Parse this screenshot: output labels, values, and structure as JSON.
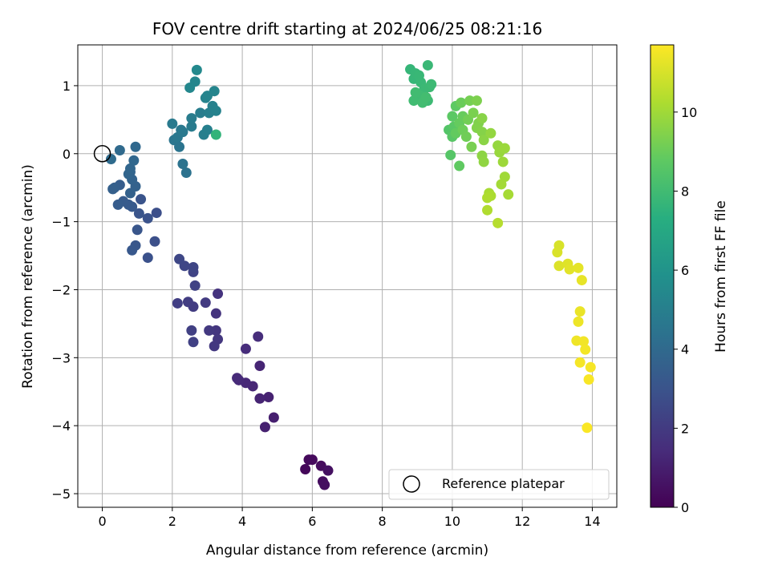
{
  "chart_data": {
    "type": "scatter",
    "title": "FOV centre drift starting at 2024/06/25 08:21:16",
    "xlabel": "Angular distance from reference (arcmin)",
    "ylabel": "Rotation from reference (arcmin)",
    "xlim": [
      -0.7,
      14.7
    ],
    "ylim": [
      -5.2,
      1.6
    ],
    "xticks": [
      0,
      2,
      4,
      6,
      8,
      10,
      12,
      14
    ],
    "yticks": [
      -5,
      -4,
      -3,
      -2,
      -1,
      0,
      1
    ],
    "xtick_labels": [
      "0",
      "2",
      "4",
      "6",
      "8",
      "10",
      "12",
      "14"
    ],
    "ytick_labels": [
      "−5",
      "−4",
      "−3",
      "−2",
      "−1",
      "0",
      "1"
    ],
    "grid": true,
    "colormap": "viridis",
    "colorbar": {
      "label": "Hours from first FF file",
      "min": 0,
      "max": 11.7,
      "ticks": [
        0,
        2,
        4,
        6,
        8,
        10
      ],
      "tick_labels": [
        "0",
        "2",
        "4",
        "6",
        "8",
        "10"
      ]
    },
    "legend": {
      "placement": "lower-right",
      "entries": [
        {
          "label": "Reference platepar",
          "marker": "open-circle"
        }
      ]
    },
    "reference_point": {
      "x": 0,
      "y": 0
    },
    "points": [
      {
        "x": 5.8,
        "y": -4.64,
        "h": 0.2
      },
      {
        "x": 5.9,
        "y": -4.5,
        "h": 0.25
      },
      {
        "x": 6.0,
        "y": -4.5,
        "h": 0.3
      },
      {
        "x": 6.25,
        "y": -4.59,
        "h": 0.35
      },
      {
        "x": 6.3,
        "y": -4.82,
        "h": 0.4
      },
      {
        "x": 6.35,
        "y": -4.87,
        "h": 0.45
      },
      {
        "x": 6.45,
        "y": -4.66,
        "h": 0.5
      },
      {
        "x": 4.9,
        "y": -3.88,
        "h": 1.0
      },
      {
        "x": 4.65,
        "y": -4.02,
        "h": 1.05
      },
      {
        "x": 4.75,
        "y": -3.58,
        "h": 1.1
      },
      {
        "x": 4.5,
        "y": -3.6,
        "h": 1.15
      },
      {
        "x": 4.5,
        "y": -3.12,
        "h": 1.2
      },
      {
        "x": 4.3,
        "y": -3.42,
        "h": 1.25
      },
      {
        "x": 4.1,
        "y": -3.37,
        "h": 1.3
      },
      {
        "x": 3.9,
        "y": -3.33,
        "h": 1.35
      },
      {
        "x": 3.85,
        "y": -3.3,
        "h": 1.4
      },
      {
        "x": 4.1,
        "y": -2.87,
        "h": 1.45
      },
      {
        "x": 4.45,
        "y": -2.69,
        "h": 1.5
      },
      {
        "x": 3.3,
        "y": -2.06,
        "h": 1.7
      },
      {
        "x": 3.25,
        "y": -2.35,
        "h": 1.75
      },
      {
        "x": 3.25,
        "y": -2.6,
        "h": 1.8
      },
      {
        "x": 3.3,
        "y": -2.73,
        "h": 1.85
      },
      {
        "x": 3.2,
        "y": -2.83,
        "h": 1.9
      },
      {
        "x": 3.05,
        "y": -2.6,
        "h": 1.95
      },
      {
        "x": 2.95,
        "y": -2.19,
        "h": 2.0
      },
      {
        "x": 2.6,
        "y": -2.25,
        "h": 2.05
      },
      {
        "x": 2.45,
        "y": -2.18,
        "h": 2.1
      },
      {
        "x": 2.15,
        "y": -2.2,
        "h": 2.15
      },
      {
        "x": 2.55,
        "y": -2.6,
        "h": 2.2
      },
      {
        "x": 2.6,
        "y": -2.77,
        "h": 2.25
      },
      {
        "x": 2.65,
        "y": -1.94,
        "h": 2.3
      },
      {
        "x": 2.6,
        "y": -1.74,
        "h": 2.35
      },
      {
        "x": 2.6,
        "y": -1.67,
        "h": 2.4
      },
      {
        "x": 2.35,
        "y": -1.65,
        "h": 2.45
      },
      {
        "x": 2.2,
        "y": -1.55,
        "h": 2.5
      },
      {
        "x": 1.55,
        "y": -0.87,
        "h": 2.8
      },
      {
        "x": 1.5,
        "y": -1.29,
        "h": 2.85
      },
      {
        "x": 1.3,
        "y": -1.53,
        "h": 2.9
      },
      {
        "x": 1.3,
        "y": -0.95,
        "h": 2.95
      },
      {
        "x": 1.1,
        "y": -0.67,
        "h": 3.0
      },
      {
        "x": 1.05,
        "y": -0.88,
        "h": 3.05
      },
      {
        "x": 1.0,
        "y": -1.12,
        "h": 3.1
      },
      {
        "x": 0.95,
        "y": -1.35,
        "h": 3.15
      },
      {
        "x": 0.85,
        "y": -1.42,
        "h": 3.2
      },
      {
        "x": 0.85,
        "y": -0.78,
        "h": 3.25
      },
      {
        "x": 0.75,
        "y": -0.75,
        "h": 3.3
      },
      {
        "x": 0.6,
        "y": -0.7,
        "h": 3.35
      },
      {
        "x": 0.45,
        "y": -0.75,
        "h": 3.4
      },
      {
        "x": 0.5,
        "y": -0.46,
        "h": 3.45
      },
      {
        "x": 0.35,
        "y": -0.5,
        "h": 3.5
      },
      {
        "x": 0.3,
        "y": -0.52,
        "h": 3.55
      },
      {
        "x": 0.8,
        "y": -0.58,
        "h": 3.6
      },
      {
        "x": 0.95,
        "y": -0.48,
        "h": 3.65
      },
      {
        "x": 0.85,
        "y": -0.38,
        "h": 3.7
      },
      {
        "x": 0.8,
        "y": -0.27,
        "h": 3.75
      },
      {
        "x": 0.75,
        "y": -0.3,
        "h": 3.8
      },
      {
        "x": 0.8,
        "y": -0.22,
        "h": 3.85
      },
      {
        "x": 0.9,
        "y": -0.1,
        "h": 3.9
      },
      {
        "x": 0.95,
        "y": 0.1,
        "h": 3.95
      },
      {
        "x": 0.5,
        "y": 0.05,
        "h": 4.0
      },
      {
        "x": 0.25,
        "y": -0.08,
        "h": 4.05
      },
      {
        "x": 2.4,
        "y": -0.28,
        "h": 4.4
      },
      {
        "x": 2.3,
        "y": -0.15,
        "h": 4.45
      },
      {
        "x": 2.2,
        "y": 0.1,
        "h": 4.5
      },
      {
        "x": 2.05,
        "y": 0.2,
        "h": 4.55
      },
      {
        "x": 2.15,
        "y": 0.24,
        "h": 4.6
      },
      {
        "x": 2.25,
        "y": 0.35,
        "h": 4.65
      },
      {
        "x": 2.3,
        "y": 0.32,
        "h": 4.7
      },
      {
        "x": 2.0,
        "y": 0.44,
        "h": 4.75
      },
      {
        "x": 2.55,
        "y": 0.4,
        "h": 4.8
      },
      {
        "x": 2.55,
        "y": 0.52,
        "h": 4.85
      },
      {
        "x": 2.8,
        "y": 0.6,
        "h": 4.9
      },
      {
        "x": 2.9,
        "y": 0.28,
        "h": 4.95
      },
      {
        "x": 3.0,
        "y": 0.35,
        "h": 5.0
      },
      {
        "x": 3.05,
        "y": 0.6,
        "h": 5.05
      },
      {
        "x": 3.15,
        "y": 0.7,
        "h": 5.1
      },
      {
        "x": 3.25,
        "y": 0.63,
        "h": 5.15
      },
      {
        "x": 2.95,
        "y": 0.82,
        "h": 5.2
      },
      {
        "x": 3.0,
        "y": 0.85,
        "h": 5.25
      },
      {
        "x": 3.2,
        "y": 0.92,
        "h": 5.3
      },
      {
        "x": 2.65,
        "y": 1.06,
        "h": 5.35
      },
      {
        "x": 2.5,
        "y": 0.97,
        "h": 5.4
      },
      {
        "x": 2.7,
        "y": 1.23,
        "h": 5.45
      },
      {
        "x": 3.25,
        "y": 0.28,
        "h": 7.6
      },
      {
        "x": 8.8,
        "y": 1.24,
        "h": 7.7
      },
      {
        "x": 8.9,
        "y": 1.1,
        "h": 7.72
      },
      {
        "x": 8.95,
        "y": 1.18,
        "h": 7.75
      },
      {
        "x": 9.05,
        "y": 1.15,
        "h": 7.78
      },
      {
        "x": 9.1,
        "y": 1.05,
        "h": 7.8
      },
      {
        "x": 9.3,
        "y": 1.3,
        "h": 7.82
      },
      {
        "x": 9.2,
        "y": 0.95,
        "h": 7.85
      },
      {
        "x": 9.35,
        "y": 0.98,
        "h": 7.88
      },
      {
        "x": 9.4,
        "y": 1.02,
        "h": 7.9
      },
      {
        "x": 9.3,
        "y": 0.78,
        "h": 7.92
      },
      {
        "x": 9.1,
        "y": 0.85,
        "h": 7.95
      },
      {
        "x": 9.0,
        "y": 0.82,
        "h": 7.98
      },
      {
        "x": 8.9,
        "y": 0.78,
        "h": 8.0
      },
      {
        "x": 8.95,
        "y": 0.9,
        "h": 8.02
      },
      {
        "x": 9.15,
        "y": 0.75,
        "h": 8.05
      },
      {
        "x": 9.25,
        "y": 0.83,
        "h": 8.08
      },
      {
        "x": 9.9,
        "y": 0.35,
        "h": 8.5
      },
      {
        "x": 9.95,
        "y": -0.02,
        "h": 8.55
      },
      {
        "x": 10.0,
        "y": 0.25,
        "h": 8.6
      },
      {
        "x": 10.05,
        "y": 0.4,
        "h": 8.65
      },
      {
        "x": 10.0,
        "y": 0.55,
        "h": 8.7
      },
      {
        "x": 10.1,
        "y": 0.7,
        "h": 8.75
      },
      {
        "x": 10.2,
        "y": -0.18,
        "h": 8.8
      },
      {
        "x": 10.1,
        "y": 0.3,
        "h": 8.85
      },
      {
        "x": 10.2,
        "y": 0.45,
        "h": 8.9
      },
      {
        "x": 10.3,
        "y": 0.55,
        "h": 8.95
      },
      {
        "x": 10.25,
        "y": 0.75,
        "h": 9.0
      },
      {
        "x": 10.3,
        "y": 0.35,
        "h": 9.05
      },
      {
        "x": 10.4,
        "y": 0.25,
        "h": 9.1
      },
      {
        "x": 10.45,
        "y": 0.5,
        "h": 9.15
      },
      {
        "x": 10.5,
        "y": 0.78,
        "h": 9.2
      },
      {
        "x": 10.55,
        "y": 0.1,
        "h": 9.25
      },
      {
        "x": 10.6,
        "y": 0.6,
        "h": 9.3
      },
      {
        "x": 10.7,
        "y": 0.78,
        "h": 9.35
      },
      {
        "x": 10.75,
        "y": 0.45,
        "h": 9.4
      },
      {
        "x": 10.7,
        "y": 0.38,
        "h": 9.45
      },
      {
        "x": 10.85,
        "y": 0.32,
        "h": 9.5
      },
      {
        "x": 10.85,
        "y": 0.52,
        "h": 9.55
      },
      {
        "x": 10.9,
        "y": 0.2,
        "h": 9.6
      },
      {
        "x": 10.85,
        "y": -0.03,
        "h": 9.65
      },
      {
        "x": 10.9,
        "y": -0.12,
        "h": 9.7
      },
      {
        "x": 11.1,
        "y": 0.3,
        "h": 9.75
      },
      {
        "x": 11.3,
        "y": 0.12,
        "h": 9.8
      },
      {
        "x": 11.35,
        "y": 0.02,
        "h": 9.85
      },
      {
        "x": 11.5,
        "y": 0.08,
        "h": 9.9
      },
      {
        "x": 11.45,
        "y": -0.12,
        "h": 9.95
      },
      {
        "x": 11.5,
        "y": -0.34,
        "h": 10.0
      },
      {
        "x": 11.4,
        "y": -0.45,
        "h": 10.05
      },
      {
        "x": 11.6,
        "y": -0.6,
        "h": 10.1
      },
      {
        "x": 11.05,
        "y": -0.58,
        "h": 10.15
      },
      {
        "x": 11.1,
        "y": -0.62,
        "h": 10.2
      },
      {
        "x": 11.0,
        "y": -0.65,
        "h": 10.25
      },
      {
        "x": 11.0,
        "y": -0.83,
        "h": 10.3
      },
      {
        "x": 11.3,
        "y": -1.02,
        "h": 10.4
      },
      {
        "x": 13.05,
        "y": -1.35,
        "h": 11.0
      },
      {
        "x": 13.0,
        "y": -1.45,
        "h": 11.05
      },
      {
        "x": 13.05,
        "y": -1.65,
        "h": 11.1
      },
      {
        "x": 13.3,
        "y": -1.62,
        "h": 11.15
      },
      {
        "x": 13.35,
        "y": -1.7,
        "h": 11.2
      },
      {
        "x": 13.6,
        "y": -1.68,
        "h": 11.25
      },
      {
        "x": 13.7,
        "y": -1.86,
        "h": 11.3
      },
      {
        "x": 13.65,
        "y": -2.32,
        "h": 11.35
      },
      {
        "x": 13.6,
        "y": -2.47,
        "h": 11.4
      },
      {
        "x": 13.55,
        "y": -2.75,
        "h": 11.45
      },
      {
        "x": 13.75,
        "y": -2.76,
        "h": 11.5
      },
      {
        "x": 13.8,
        "y": -2.88,
        "h": 11.52
      },
      {
        "x": 13.65,
        "y": -3.07,
        "h": 11.55
      },
      {
        "x": 13.95,
        "y": -3.14,
        "h": 11.58
      },
      {
        "x": 13.9,
        "y": -3.32,
        "h": 11.6
      },
      {
        "x": 13.85,
        "y": -4.03,
        "h": 11.65
      }
    ]
  }
}
